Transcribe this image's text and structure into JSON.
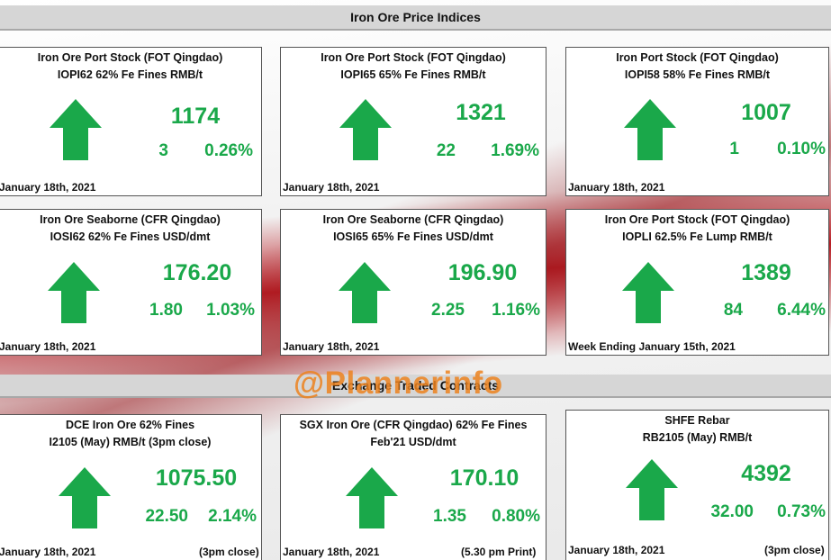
{
  "header": {
    "title": "Iron Ore Price Indices"
  },
  "section2": {
    "title": "Exchange Traded Contracts"
  },
  "watermark": {
    "text": "@Plannerinfo"
  },
  "colors": {
    "up": "#1aa84a",
    "header_bg": "#d6d6d6",
    "accent": "#b81d24"
  },
  "cards": [
    {
      "title1": "Iron Ore Port Stock (FOT Qingdao)",
      "title2": "IOPI62 62% Fe Fines RMB/t",
      "price": "1174",
      "change": "3",
      "pct": "0.26%",
      "date": "January 18th, 2021",
      "note": "",
      "direction": "up",
      "icon": "up-arrow-icon"
    },
    {
      "title1": "Iron Ore Port Stock (FOT Qingdao)",
      "title2": "IOPI65 65% Fe Fines RMB/t",
      "price": "1321",
      "change": "22",
      "pct": "1.69%",
      "date": "January 18th, 2021",
      "note": "",
      "direction": "up",
      "icon": "up-arrow-icon"
    },
    {
      "title1": "Iron Port Stock (FOT Qingdao)",
      "title2": "IOPI58 58% Fe Fines RMB/t",
      "price": "1007",
      "change": "1",
      "pct": "0.10%",
      "date": "January 18th, 2021",
      "note": "",
      "direction": "up",
      "icon": "up-arrow-icon"
    },
    {
      "title1": "Iron Ore Seaborne (CFR Qingdao)",
      "title2": "IOSI62 62% Fe Fines USD/dmt",
      "price": "176.20",
      "change": "1.80",
      "pct": "1.03%",
      "date": "January 18th, 2021",
      "note": "",
      "direction": "up",
      "icon": "up-arrow-icon"
    },
    {
      "title1": "Iron Ore Seaborne (CFR Qingdao)",
      "title2": "IOSI65 65% Fe Fines USD/dmt",
      "price": "196.90",
      "change": "2.25",
      "pct": "1.16%",
      "date": "January 18th, 2021",
      "note": "",
      "direction": "up",
      "icon": "up-arrow-icon"
    },
    {
      "title1": "Iron Ore Port Stock (FOT Qingdao)",
      "title2": "IOPLI 62.5% Fe Lump RMB/t",
      "price": "1389",
      "change": "84",
      "pct": "6.44%",
      "date": "Week Ending January 15th, 2021",
      "note": "",
      "direction": "up",
      "icon": "up-arrow-icon"
    },
    {
      "title1": "DCE Iron Ore 62% Fines",
      "title2": "I2105 (May) RMB/t (3pm close)",
      "price": "1075.50",
      "change": "22.50",
      "pct": "2.14%",
      "date": "January 18th, 2021",
      "note": "(3pm close)",
      "direction": "up",
      "icon": "up-arrow-icon"
    },
    {
      "title1": "SGX Iron Ore (CFR Qingdao) 62% Fe Fines",
      "title2": "Feb'21 USD/dmt",
      "price": "170.10",
      "change": "1.35",
      "pct": "0.80%",
      "date": "January 18th, 2021",
      "note": "(5.30 pm Print)",
      "direction": "up",
      "icon": "up-arrow-icon"
    },
    {
      "title1": "SHFE Rebar",
      "title2": "RB2105 (May) RMB/t",
      "price": "4392",
      "change": "32.00",
      "pct": "0.73%",
      "date": "January 18th, 2021",
      "note": "(3pm close)",
      "direction": "up",
      "icon": "up-arrow-icon"
    }
  ]
}
